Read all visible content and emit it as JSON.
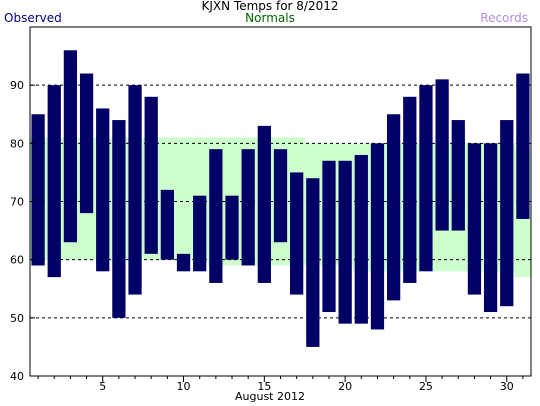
{
  "chart_data": {
    "type": "bar",
    "title": "KJXN Temps for 8/2012",
    "xlabel": "August 2012",
    "ylabel": "",
    "legend": {
      "observed": "Observed",
      "normals": "Normals",
      "records": "Records"
    },
    "ylim": [
      40,
      100
    ],
    "xlim": [
      0.5,
      31.5
    ],
    "yticks": [
      40,
      50,
      60,
      70,
      80,
      90
    ],
    "xticks": [
      5,
      10,
      15,
      20,
      25,
      30
    ],
    "gridlines": [
      50,
      60,
      70,
      80,
      90
    ],
    "days": [
      1,
      2,
      3,
      4,
      5,
      6,
      7,
      8,
      9,
      10,
      11,
      12,
      13,
      14,
      15,
      16,
      17,
      18,
      19,
      20,
      21,
      22,
      23,
      24,
      25,
      26,
      27,
      28,
      29,
      30,
      31
    ],
    "series": [
      {
        "name": "Observed",
        "kind": "range",
        "high": [
          85,
          90,
          96,
          92,
          86,
          84,
          90,
          88,
          72,
          61,
          71,
          79,
          71,
          79,
          83,
          79,
          75,
          74,
          77,
          77,
          78,
          80,
          85,
          88,
          90,
          91,
          84,
          80,
          80,
          84,
          92
        ],
        "low": [
          59,
          57,
          63,
          68,
          58,
          50,
          54,
          61,
          60,
          58,
          58,
          56,
          60,
          59,
          56,
          63,
          54,
          45,
          51,
          49,
          49,
          48,
          53,
          56,
          58,
          65,
          65,
          54,
          51,
          52,
          67
        ]
      },
      {
        "name": "Normals",
        "kind": "range",
        "high": [
          81,
          81,
          81,
          81,
          81,
          81,
          81,
          81,
          81,
          81,
          81,
          81,
          81,
          81,
          81,
          81,
          81,
          80,
          80,
          80,
          80,
          80,
          80,
          80,
          80,
          80,
          80,
          80,
          80,
          80,
          79
        ],
        "low": [
          60,
          60,
          60,
          60,
          60,
          60,
          60,
          60,
          60,
          60,
          60,
          59,
          59,
          59,
          59,
          59,
          59,
          59,
          59,
          59,
          58,
          58,
          58,
          58,
          58,
          58,
          58,
          58,
          58,
          58,
          57
        ]
      }
    ],
    "colors": {
      "observed": "#000066",
      "normals": "#ccffcc",
      "records": "#b48ee0",
      "grid": "#000000"
    }
  }
}
